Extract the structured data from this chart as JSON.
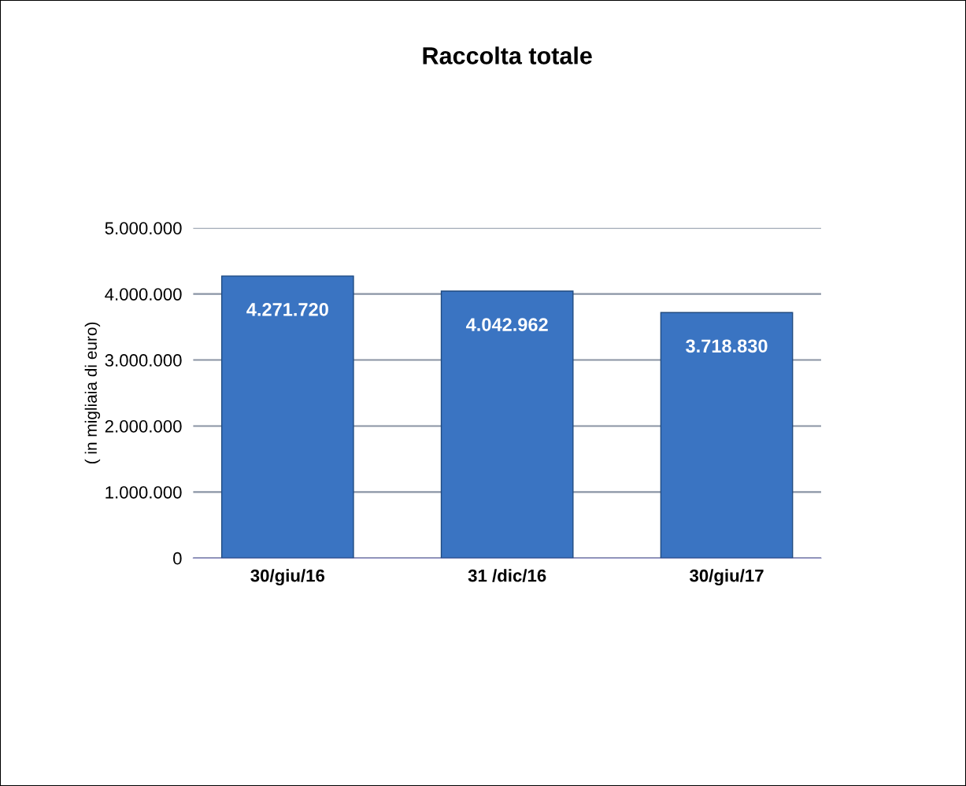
{
  "chart_data": {
    "type": "bar",
    "title": "Raccolta totale",
    "ylabel": "( in migliaia di euro)",
    "categories": [
      "30/giu/16",
      "31 /dic/16",
      "30/giu/17"
    ],
    "values": [
      4271720,
      4042962,
      3718830
    ],
    "value_labels": [
      "4.271.720",
      "4.042.962",
      "3.718.830"
    ],
    "color": "#3a74c2",
    "ylim": [
      0,
      5000000
    ],
    "yticks": [
      {
        "value": 0,
        "label": "0"
      },
      {
        "value": 1000000,
        "label": "1.000.000"
      },
      {
        "value": 2000000,
        "label": "2.000.000"
      },
      {
        "value": 3000000,
        "label": "3.000.000"
      },
      {
        "value": 4000000,
        "label": "4.000.000"
      },
      {
        "value": 5000000,
        "label": "5.000.000"
      }
    ],
    "grid": "y"
  }
}
